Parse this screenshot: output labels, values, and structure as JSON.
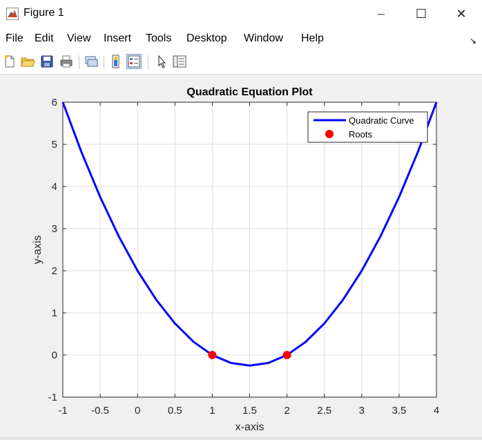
{
  "window": {
    "title": "Figure 1",
    "minimize_glyph": "─",
    "maximize_glyph": "☐",
    "close_glyph": "✕"
  },
  "menu": [
    "File",
    "Edit",
    "View",
    "Insert",
    "Tools",
    "Desktop",
    "Window",
    "Help"
  ],
  "menu_overflow_glyph": "↘",
  "toolbar_icons": [
    "new-figure-icon",
    "open-file-icon",
    "save-icon",
    "print-icon",
    "link-icon",
    "colorbar-icon",
    "legend-icon",
    "pointer-icon",
    "property-inspector-icon"
  ],
  "colors": {
    "curve": "#0000ff",
    "roots": "#ff0000",
    "grid": "#dedede",
    "axes_bg": "#ffffff"
  },
  "chart_data": {
    "type": "line",
    "title": "Quadratic Equation Plot",
    "xlabel": "x-axis",
    "ylabel": "y-axis",
    "xlim": [
      -1,
      4
    ],
    "ylim": [
      -1,
      6
    ],
    "xticks": [
      -1,
      -0.5,
      0,
      0.5,
      1,
      1.5,
      2,
      2.5,
      3,
      3.5,
      4
    ],
    "yticks": [
      -1,
      0,
      1,
      2,
      3,
      4,
      5,
      6
    ],
    "grid": true,
    "legend_position": "top-right",
    "series": [
      {
        "name": "Quadratic Curve",
        "style": "line",
        "x": [
          -1,
          -0.75,
          -0.5,
          -0.25,
          0,
          0.25,
          0.5,
          0.75,
          1,
          1.25,
          1.5,
          1.75,
          2,
          2.25,
          2.5,
          2.75,
          3,
          3.25,
          3.5,
          3.75,
          4
        ],
        "y": [
          6,
          4.8125,
          3.75,
          2.8125,
          2,
          1.3125,
          0.75,
          0.3125,
          0,
          -0.1875,
          -0.25,
          -0.1875,
          0,
          0.3125,
          0.75,
          1.3125,
          2,
          2.8125,
          3.75,
          4.8125,
          6
        ]
      },
      {
        "name": "Roots",
        "style": "markers",
        "x": [
          1,
          2
        ],
        "y": [
          0,
          0
        ]
      }
    ]
  }
}
